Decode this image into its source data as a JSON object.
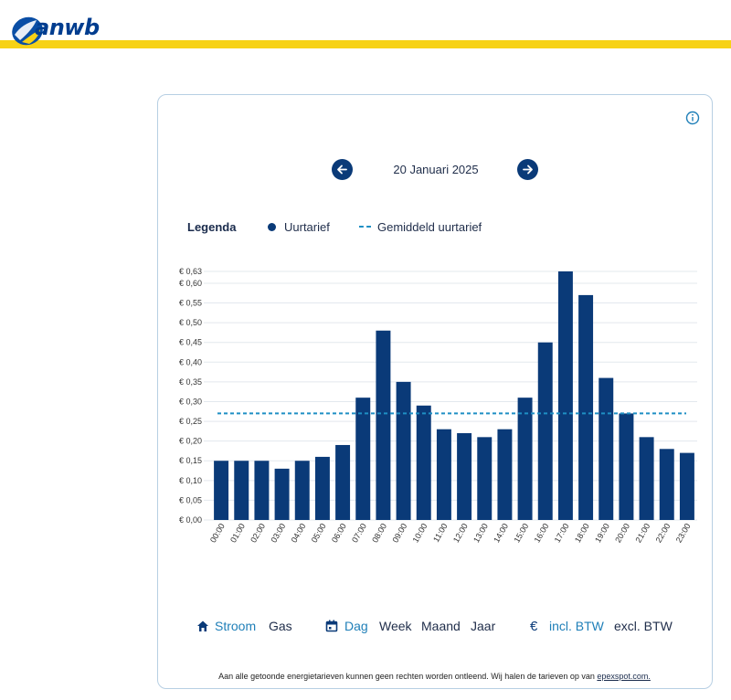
{
  "brand": {
    "logo_text": "anwb"
  },
  "navigation": {
    "prev_label": "previous-day",
    "next_label": "next-day",
    "date": "20 Januari 2025"
  },
  "legend": {
    "title": "Legenda",
    "series_label": "Uurtarief",
    "average_label": "Gemiddeld uurtarief"
  },
  "toggles": {
    "energy": [
      {
        "label": "Stroom",
        "active": true
      },
      {
        "label": "Gas",
        "active": false
      }
    ],
    "period": [
      {
        "label": "Dag",
        "active": true
      },
      {
        "label": "Week",
        "active": false
      },
      {
        "label": "Maand",
        "active": false
      },
      {
        "label": "Jaar",
        "active": false
      }
    ],
    "tax": [
      {
        "label": "incl. BTW",
        "active": true
      },
      {
        "label": "excl. BTW",
        "active": false
      }
    ]
  },
  "footer": {
    "text": "Aan alle getoonde energietarieven kunnen geen rechten worden ontleend. Wij halen de tarieven op van ",
    "link_text": "epexspot.com."
  },
  "colors": {
    "bar": "#0a3a78",
    "average_line": "#1f8fc4",
    "accent_yellow": "#f7d215",
    "active_toggle": "#1f7fb8"
  },
  "chart_data": {
    "type": "bar",
    "categories": [
      "00:00",
      "01:00",
      "02:00",
      "03:00",
      "04:00",
      "05:00",
      "06:00",
      "07:00",
      "08:00",
      "09:00",
      "10:00",
      "11:00",
      "12:00",
      "13:00",
      "14:00",
      "15:00",
      "16:00",
      "17:00",
      "18:00",
      "19:00",
      "20:00",
      "21:00",
      "22:00",
      "23:00"
    ],
    "series": [
      {
        "name": "Uurtarief",
        "values": [
          0.15,
          0.15,
          0.15,
          0.13,
          0.15,
          0.16,
          0.19,
          0.31,
          0.48,
          0.35,
          0.29,
          0.23,
          0.22,
          0.21,
          0.23,
          0.31,
          0.45,
          0.63,
          0.57,
          0.36,
          0.27,
          0.21,
          0.18,
          0.17
        ]
      }
    ],
    "average": {
      "name": "Gemiddeld uurtarief",
      "value": 0.27
    },
    "y_ticks": [
      "€ 0,00",
      "€ 0,05",
      "€ 0,10",
      "€ 0,15",
      "€ 0,20",
      "€ 0,25",
      "€ 0,30",
      "€ 0,35",
      "€ 0,40",
      "€ 0,45",
      "€ 0,50",
      "€ 0,55",
      "€ 0,60",
      "€ 0,63"
    ],
    "y_tick_values": [
      0,
      0.05,
      0.1,
      0.15,
      0.2,
      0.25,
      0.3,
      0.35,
      0.4,
      0.45,
      0.5,
      0.55,
      0.6,
      0.63
    ],
    "ylim": [
      0,
      0.63
    ],
    "grid": true,
    "title": "",
    "xlabel": "",
    "ylabel": ""
  }
}
